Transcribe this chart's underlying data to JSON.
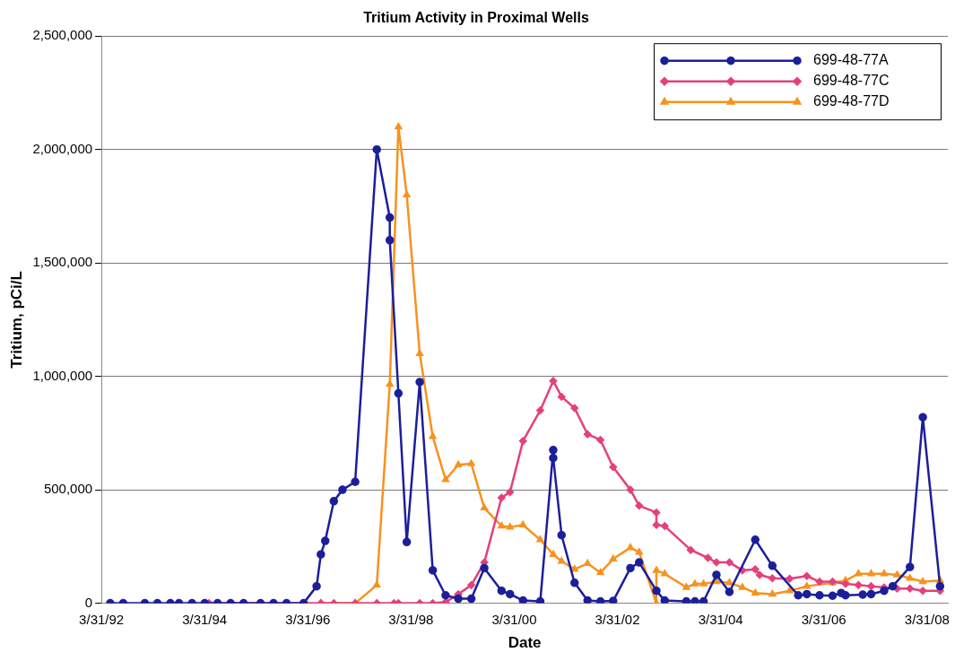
{
  "chart_data": {
    "type": "line",
    "title": "Tritium Activity in Proximal Wells",
    "xlabel": "Date",
    "ylabel": "Tritium, pCi/L",
    "xlim": [
      "1992-03-31",
      "2008-08-25"
    ],
    "xticks": [
      {
        "value": "1992-03-31",
        "label": "3/31/92"
      },
      {
        "value": "1994-03-31",
        "label": "3/31/94"
      },
      {
        "value": "1996-03-31",
        "label": "3/31/96"
      },
      {
        "value": "1998-03-31",
        "label": "3/31/98"
      },
      {
        "value": "2000-03-31",
        "label": "3/31/00"
      },
      {
        "value": "2002-03-31",
        "label": "3/31/02"
      },
      {
        "value": "2004-03-31",
        "label": "3/31/04"
      },
      {
        "value": "2006-03-31",
        "label": "3/31/06"
      },
      {
        "value": "2008-03-31",
        "label": "3/31/08"
      }
    ],
    "ylim": [
      0,
      2500000
    ],
    "yticks": [
      {
        "value": 0,
        "label": "0"
      },
      {
        "value": 500000,
        "label": "500,000"
      },
      {
        "value": 1000000,
        "label": "1,000,000"
      },
      {
        "value": 1500000,
        "label": "1,500,000"
      },
      {
        "value": 2000000,
        "label": "2,000,000"
      },
      {
        "value": 2500000,
        "label": "2,500,000"
      }
    ],
    "grid": "y",
    "legend": "top right",
    "line_style": "solid",
    "series": [
      {
        "name": "699-48-77A",
        "color": "#1c1f9a",
        "marker": "circle",
        "x": [
          "1992-06",
          "1992-09",
          "1993-02",
          "1993-05",
          "1993-08",
          "1993-10",
          "1994-01",
          "1994-04",
          "1994-07",
          "1994-10",
          "1995-01",
          "1995-05",
          "1995-08",
          "1995-11",
          "1996-03",
          "1996-06",
          "1996-07",
          "1996-08",
          "1996-10",
          "1996-12",
          "1997-03",
          "1997-08",
          "1997-11",
          "1997-11",
          "1998-01",
          "1998-03",
          "1998-06",
          "1998-09",
          "1998-12",
          "1999-03",
          "1999-06",
          "1999-09",
          "2000-01",
          "2000-03",
          "2000-06",
          "2000-10",
          "2001-01",
          "2001-01",
          "2001-03",
          "2001-06",
          "2001-09",
          "2001-12",
          "2002-03",
          "2002-07",
          "2002-09",
          "2003-01",
          "2003-03",
          "2003-08",
          "2003-10",
          "2003-12",
          "2004-03",
          "2004-06",
          "2004-12",
          "2005-04",
          "2005-10",
          "2005-12",
          "2006-03",
          "2006-06",
          "2006-08",
          "2006-09",
          "2007-01",
          "2007-03",
          "2007-06",
          "2007-08",
          "2007-12",
          "2008-03",
          "2008-07"
        ],
        "values": [
          0,
          0,
          0,
          0,
          0,
          0,
          0,
          0,
          0,
          0,
          0,
          0,
          0,
          0,
          0,
          75000,
          215000,
          275000,
          450000,
          500000,
          535000,
          2000000,
          1700000,
          1600000,
          925000,
          270000,
          975000,
          145000,
          35000,
          20000,
          20000,
          155000,
          55000,
          40000,
          12000,
          8000,
          675000,
          640000,
          300000,
          90000,
          12000,
          8000,
          10000,
          155000,
          180000,
          55000,
          12000,
          8000,
          8000,
          8000,
          125000,
          50000,
          280000,
          165000,
          35000,
          40000,
          35000,
          33000,
          45000,
          35000,
          38000,
          40000,
          55000,
          75000,
          160000,
          820000,
          75000
        ]
      },
      {
        "name": "699-48-77C",
        "color": "#e5407c",
        "marker": "diamond",
        "x": [
          "1994-05",
          "1994-10",
          "1995-05",
          "1995-11",
          "1996-07",
          "1996-10",
          "1997-03",
          "1997-08",
          "1997-12",
          "1998-01",
          "1998-06",
          "1998-09",
          "1998-12",
          "1999-03",
          "1999-06",
          "1999-09",
          "2000-01",
          "2000-03",
          "2000-06",
          "2000-10",
          "2001-01",
          "2001-03",
          "2001-06",
          "2001-09",
          "2001-12",
          "2002-03",
          "2002-07",
          "2002-09",
          "2003-01",
          "2003-01",
          "2003-03",
          "2003-09",
          "2004-01",
          "2004-03",
          "2004-06",
          "2004-09",
          "2004-12",
          "2005-01",
          "2005-04",
          "2005-08",
          "2005-12",
          "2006-03",
          "2006-06",
          "2006-09",
          "2006-12",
          "2007-03",
          "2007-06",
          "2007-09",
          "2007-12",
          "2008-03",
          "2008-07"
        ],
        "values": [
          0,
          0,
          0,
          0,
          0,
          0,
          0,
          0,
          0,
          0,
          0,
          0,
          5000,
          40000,
          80000,
          180000,
          465000,
          490000,
          715000,
          850000,
          980000,
          910000,
          860000,
          745000,
          720000,
          600000,
          500000,
          430000,
          400000,
          345000,
          340000,
          235000,
          200000,
          180000,
          180000,
          145000,
          150000,
          125000,
          110000,
          108000,
          120000,
          95000,
          95000,
          85000,
          80000,
          75000,
          70000,
          65000,
          65000,
          55000,
          55000
        ]
      },
      {
        "name": "699-48-77D",
        "color": "#f7921e",
        "marker": "triangle",
        "x": [
          "1996-07",
          "1997-03",
          "1997-08",
          "1997-11",
          "1998-01",
          "1998-03",
          "1998-06",
          "1998-09",
          "1998-12",
          "1999-03",
          "1999-06",
          "1999-09",
          "2000-01",
          "2000-03",
          "2000-06",
          "2000-10",
          "2001-01",
          "2001-03",
          "2001-06",
          "2001-09",
          "2001-12",
          "2002-03",
          "2002-07",
          "2002-09",
          "2003-01",
          "2003-01",
          "2003-03",
          "2003-08",
          "2003-10",
          "2003-12",
          "2004-03",
          "2004-06",
          "2004-09",
          "2004-12",
          "2005-04",
          "2005-08",
          "2005-12",
          "2006-06",
          "2006-09",
          "2006-12",
          "2007-03",
          "2007-06",
          "2007-09",
          "2007-12",
          "2008-03",
          "2008-07"
        ],
        "values": [
          0,
          0,
          80000,
          965000,
          2100000,
          1800000,
          1100000,
          735000,
          545000,
          610000,
          615000,
          420000,
          340000,
          335000,
          345000,
          280000,
          215000,
          185000,
          150000,
          175000,
          135000,
          195000,
          245000,
          225000,
          0,
          145000,
          130000,
          70000,
          85000,
          85000,
          95000,
          90000,
          70000,
          45000,
          40000,
          55000,
          75000,
          90000,
          100000,
          130000,
          130000,
          130000,
          125000,
          110000,
          95000,
          100000
        ]
      }
    ]
  }
}
